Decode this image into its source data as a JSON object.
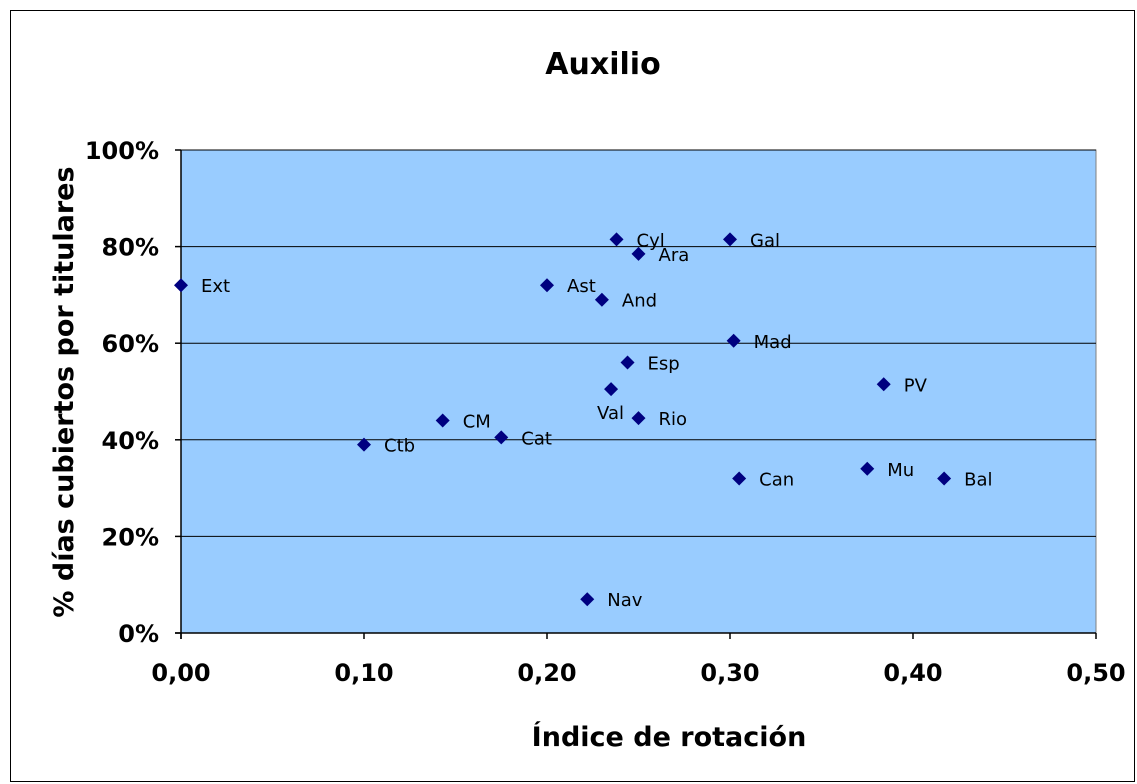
{
  "chart_data": {
    "type": "scatter",
    "title": "Auxilio",
    "xlabel": "Índice de rotación",
    "ylabel": "% días cubiertos por titulares",
    "xlim": [
      0,
      0.5
    ],
    "ylim": [
      0,
      1
    ],
    "x_ticks": [
      0,
      0.1,
      0.2,
      0.3,
      0.4,
      0.5
    ],
    "x_tick_labels": [
      "0,00",
      "0,10",
      "0,20",
      "0,30",
      "0,40",
      "0,50"
    ],
    "y_ticks": [
      0,
      0.2,
      0.4,
      0.6,
      0.8,
      1.0
    ],
    "y_tick_labels": [
      "0%",
      "20%",
      "40%",
      "60%",
      "80%",
      "100%"
    ],
    "grid": "horizontal",
    "legend": "none",
    "colors": {
      "plot_bg": "#99ccff",
      "marker": "#000080",
      "grid": "#000000"
    },
    "points": [
      {
        "label": "Ext",
        "x": 0.0,
        "y": 0.72
      },
      {
        "label": "Ctb",
        "x": 0.1,
        "y": 0.39
      },
      {
        "label": "CM",
        "x": 0.143,
        "y": 0.44
      },
      {
        "label": "Cat",
        "x": 0.175,
        "y": 0.405
      },
      {
        "label": "Ast",
        "x": 0.2,
        "y": 0.72
      },
      {
        "label": "Nav",
        "x": 0.222,
        "y": 0.07
      },
      {
        "label": "And",
        "x": 0.23,
        "y": 0.69
      },
      {
        "label": "Val",
        "x": 0.235,
        "y": 0.505
      },
      {
        "label": "Cyl",
        "x": 0.238,
        "y": 0.815
      },
      {
        "label": "Esp",
        "x": 0.244,
        "y": 0.56
      },
      {
        "label": "Ara",
        "x": 0.25,
        "y": 0.785
      },
      {
        "label": "Rio",
        "x": 0.25,
        "y": 0.445
      },
      {
        "label": "Gal",
        "x": 0.3,
        "y": 0.815
      },
      {
        "label": "Mad",
        "x": 0.302,
        "y": 0.605
      },
      {
        "label": "Can",
        "x": 0.305,
        "y": 0.32
      },
      {
        "label": "Mu",
        "x": 0.375,
        "y": 0.34
      },
      {
        "label": "PV",
        "x": 0.384,
        "y": 0.515
      },
      {
        "label": "Bal",
        "x": 0.417,
        "y": 0.32
      }
    ]
  }
}
